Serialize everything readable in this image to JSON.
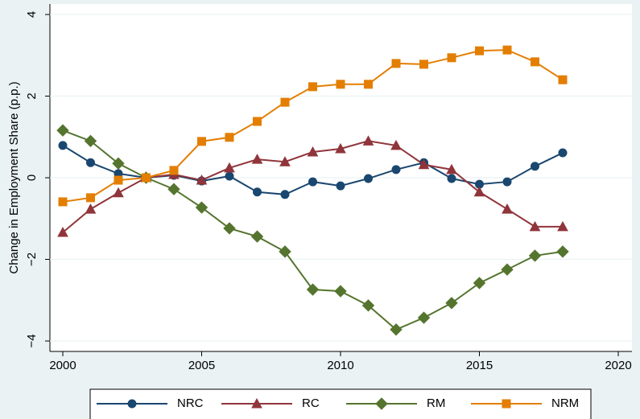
{
  "chart_data": {
    "type": "line",
    "y_label": "Change in Employment Share (p.p.)",
    "x": [
      2000,
      2001,
      2002,
      2003,
      2004,
      2005,
      2006,
      2007,
      2008,
      2009,
      2010,
      2011,
      2012,
      2013,
      2014,
      2015,
      2016,
      2017,
      2018
    ],
    "xlim": [
      2000,
      2020
    ],
    "xticks": [
      2000,
      2005,
      2010,
      2015,
      2020
    ],
    "ylim": [
      -4,
      4
    ],
    "yticks": [
      {
        "value": -4,
        "label": "−4"
      },
      {
        "value": -2,
        "label": "−2"
      },
      0,
      2,
      4
    ],
    "grid": true,
    "legend": "bottom",
    "series": [
      {
        "name": "NRC",
        "color": "#1a476f",
        "marker": "circle",
        "values": [
          0.79,
          0.37,
          0.1,
          0,
          0.06,
          -0.08,
          0.04,
          -0.35,
          -0.41,
          -0.1,
          -0.2,
          -0.02,
          0.2,
          0.37,
          -0.02,
          -0.16,
          -0.1,
          0.28,
          0.61
        ]
      },
      {
        "name": "RC",
        "color": "#90353b",
        "marker": "triangle",
        "values": [
          -1.34,
          -0.77,
          -0.37,
          0,
          0.08,
          -0.06,
          0.24,
          0.45,
          0.39,
          0.63,
          0.71,
          0.9,
          0.79,
          0.32,
          0.2,
          -0.35,
          -0.77,
          -1.2,
          -1.2
        ]
      },
      {
        "name": "RM",
        "color": "#55752f",
        "marker": "diamond",
        "values": [
          1.16,
          0.9,
          0.35,
          0,
          -0.28,
          -0.73,
          -1.24,
          -1.44,
          -1.81,
          -2.74,
          -2.78,
          -3.13,
          -3.72,
          -3.43,
          -3.07,
          -2.58,
          -2.25,
          -1.91,
          -1.81
        ]
      },
      {
        "name": "NRM",
        "color": "#e37e00",
        "marker": "square",
        "values": [
          -0.59,
          -0.49,
          -0.06,
          0,
          0.18,
          0.89,
          0.99,
          1.38,
          1.85,
          2.23,
          2.29,
          2.29,
          2.8,
          2.78,
          2.94,
          3.11,
          3.13,
          2.84,
          2.4
        ]
      }
    ]
  }
}
